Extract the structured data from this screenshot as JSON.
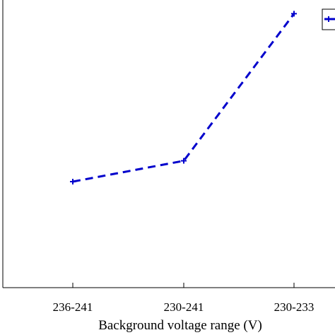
{
  "chart_data": {
    "type": "line",
    "categories": [
      "236-241",
      "230-241",
      "230-233"
    ],
    "series": [
      {
        "values": [
          0.387,
          0.463,
          1.0
        ],
        "color": "#0000cc",
        "line_style": "dashed",
        "marker": "plus"
      }
    ],
    "title": "",
    "xlabel": "Background voltage range (V)",
    "ylabel": "",
    "ylim": [
      0,
      1.05
    ],
    "grid": false,
    "legend_position": "top-right"
  }
}
